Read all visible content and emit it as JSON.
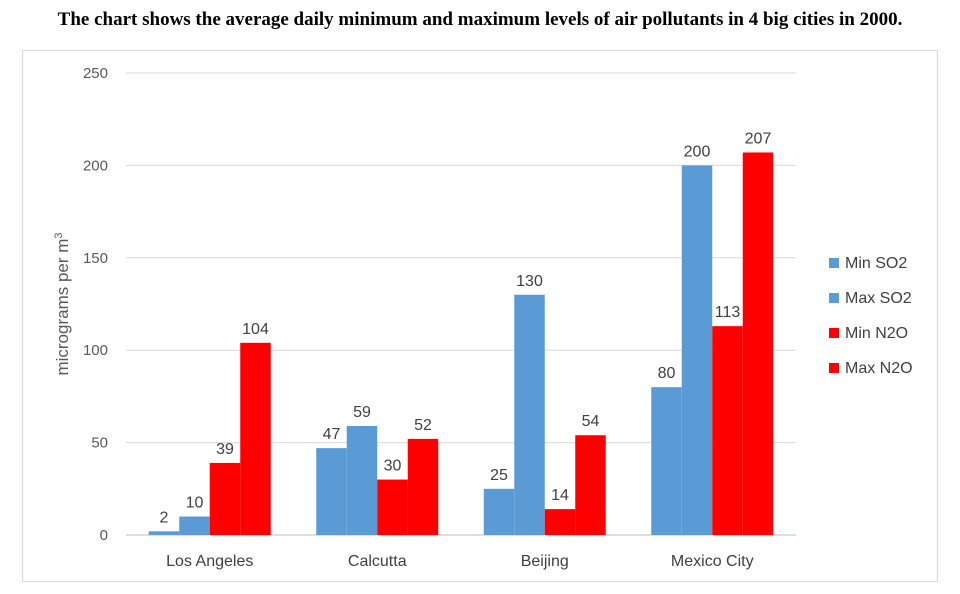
{
  "chart_data": {
    "type": "bar",
    "title": "The chart shows the average daily minimum and maximum levels of air pollutants in 4 big cities in 2000.",
    "xlabel": "",
    "ylabel": "micrograms per m",
    "ylabel_superscript": "3",
    "ylim": [
      0,
      250
    ],
    "yticks": [
      "0",
      "50",
      "100",
      "150",
      "200",
      "250"
    ],
    "grid": true,
    "legend_position": "right",
    "categories": [
      "Los Angeles",
      "Calcutta",
      "Beijing",
      "Mexico City"
    ],
    "series": [
      {
        "name": "Min SO2",
        "color": "#5b9bd5",
        "values": [
          2,
          47,
          25,
          80
        ]
      },
      {
        "name": "Max SO2",
        "color": "#5b9bd5",
        "values": [
          10,
          59,
          130,
          200
        ]
      },
      {
        "name": "Min N2O",
        "color": "#ff0000",
        "values": [
          39,
          30,
          14,
          113
        ]
      },
      {
        "name": "Max N2O",
        "color": "#ff0000",
        "values": [
          104,
          52,
          54,
          207
        ]
      }
    ]
  }
}
